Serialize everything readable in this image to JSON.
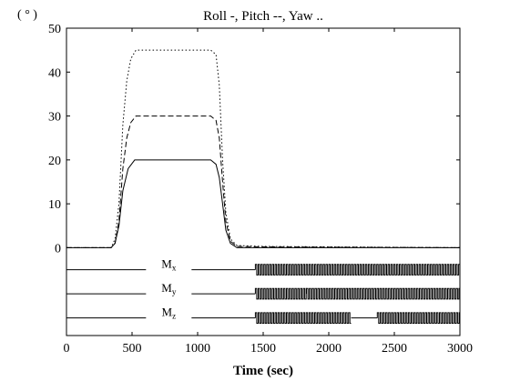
{
  "chart_data": {
    "type": "line",
    "title": "Roll -, Pitch --, Yaw ..",
    "ylabel": "( ° )",
    "xlabel": "Time (sec)",
    "xlim": [
      0,
      3000
    ],
    "ylim": [
      -20,
      50
    ],
    "xticks": [
      "0",
      "500",
      "1000",
      "1500",
      "2000",
      "2500",
      "3000"
    ],
    "yticks": [
      "0",
      "10",
      "20",
      "30",
      "40",
      "50"
    ],
    "grid": false,
    "series": [
      {
        "name": "Roll",
        "style": "solid",
        "x": [
          0,
          340,
          370,
          400,
          430,
          470,
          520,
          600,
          1000,
          1100,
          1140,
          1165,
          1190,
          1215,
          1250,
          1300,
          1500,
          3000
        ],
        "y": [
          0,
          0,
          1,
          5,
          13,
          18,
          20,
          20,
          20,
          20,
          19,
          16,
          10,
          4,
          1,
          0,
          0,
          0
        ]
      },
      {
        "name": "Pitch",
        "style": "dashed",
        "x": [
          0,
          340,
          370,
          400,
          430,
          460,
          490,
          530,
          600,
          1100,
          1140,
          1165,
          1190,
          1215,
          1250,
          1300,
          1500,
          3000
        ],
        "y": [
          0,
          0,
          1,
          6,
          18,
          25,
          28.5,
          30,
          30,
          30,
          29,
          25,
          15,
          6,
          1.5,
          0.3,
          0.2,
          0
        ]
      },
      {
        "name": "Yaw",
        "style": "dotted",
        "x": [
          0,
          340,
          370,
          400,
          430,
          460,
          490,
          530,
          600,
          1100,
          1140,
          1165,
          1190,
          1215,
          1250,
          1300,
          1500,
          3000
        ],
        "y": [
          0,
          0,
          2,
          10,
          28,
          38,
          43,
          45,
          45,
          45,
          44,
          37,
          20,
          8,
          2,
          0.5,
          0.3,
          0
        ]
      }
    ],
    "actuators": [
      {
        "label_main": "M",
        "label_sub": "x",
        "baseline": -5,
        "amplitude": 1.2,
        "segments": [
          [
            1440,
            3000
          ]
        ]
      },
      {
        "label_main": "M",
        "label_sub": "y",
        "baseline": -10.5,
        "amplitude": 1.2,
        "segments": [
          [
            1440,
            1830
          ],
          [
            1830,
            3000
          ]
        ]
      },
      {
        "label_main": "M",
        "label_sub": "z",
        "baseline": -16,
        "amplitude": 1.2,
        "segments": [
          [
            1440,
            2170
          ],
          [
            2370,
            3000
          ]
        ]
      }
    ]
  }
}
